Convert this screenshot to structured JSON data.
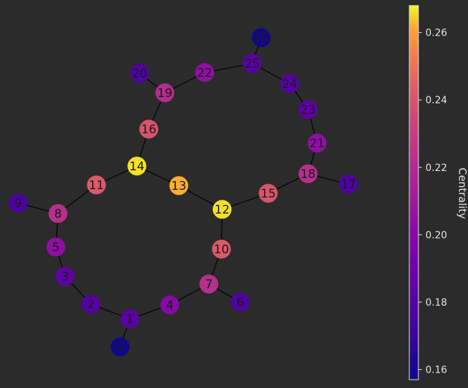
{
  "graph": {
    "nodes": [
      {
        "id": "0",
        "centrality": 0.158
      },
      {
        "id": "1",
        "centrality": 0.182
      },
      {
        "id": "2",
        "centrality": 0.18
      },
      {
        "id": "3",
        "centrality": 0.184
      },
      {
        "id": "4",
        "centrality": 0.2
      },
      {
        "id": "5",
        "centrality": 0.204
      },
      {
        "id": "6",
        "centrality": 0.178
      },
      {
        "id": "7",
        "centrality": 0.222
      },
      {
        "id": "8",
        "centrality": 0.222
      },
      {
        "id": "9",
        "centrality": 0.176
      },
      {
        "id": "10",
        "centrality": 0.242
      },
      {
        "id": "11",
        "centrality": 0.242
      },
      {
        "id": "12",
        "centrality": 0.266
      },
      {
        "id": "13",
        "centrality": 0.262
      },
      {
        "id": "14",
        "centrality": 0.266
      },
      {
        "id": "15",
        "centrality": 0.24
      },
      {
        "id": "16",
        "centrality": 0.24
      },
      {
        "id": "17",
        "centrality": 0.178
      },
      {
        "id": "18",
        "centrality": 0.222
      },
      {
        "id": "19",
        "centrality": 0.22
      },
      {
        "id": "20",
        "centrality": 0.178
      },
      {
        "id": "21",
        "centrality": 0.204
      },
      {
        "id": "22",
        "centrality": 0.204
      },
      {
        "id": "23",
        "centrality": 0.184
      },
      {
        "id": "24",
        "centrality": 0.18
      },
      {
        "id": "25",
        "centrality": 0.182
      },
      {
        "id": "26",
        "centrality": 0.158
      }
    ],
    "edges": [
      [
        "0",
        "1"
      ],
      [
        "1",
        "2"
      ],
      [
        "2",
        "3"
      ],
      [
        "3",
        "5"
      ],
      [
        "5",
        "8"
      ],
      [
        "8",
        "9"
      ],
      [
        "8",
        "11"
      ],
      [
        "11",
        "14"
      ],
      [
        "14",
        "16"
      ],
      [
        "16",
        "19"
      ],
      [
        "19",
        "20"
      ],
      [
        "19",
        "22"
      ],
      [
        "22",
        "25"
      ],
      [
        "25",
        "26"
      ],
      [
        "25",
        "24"
      ],
      [
        "24",
        "23"
      ],
      [
        "23",
        "21"
      ],
      [
        "21",
        "18"
      ],
      [
        "18",
        "17"
      ],
      [
        "18",
        "15"
      ],
      [
        "15",
        "12"
      ],
      [
        "12",
        "13"
      ],
      [
        "13",
        "14"
      ],
      [
        "12",
        "10"
      ],
      [
        "10",
        "7"
      ],
      [
        "7",
        "6"
      ],
      [
        "7",
        "4"
      ],
      [
        "4",
        "1"
      ]
    ]
  },
  "colorbar": {
    "label": "Centrality",
    "colormap": "plasma",
    "min": 0.157,
    "max": 0.268,
    "ticks": [
      "0.16",
      "0.18",
      "0.20",
      "0.22",
      "0.24",
      "0.26"
    ]
  },
  "colors": {
    "background": "#2b2b2b",
    "edge": "#0a0a0a",
    "label": "#1a1a1a"
  }
}
